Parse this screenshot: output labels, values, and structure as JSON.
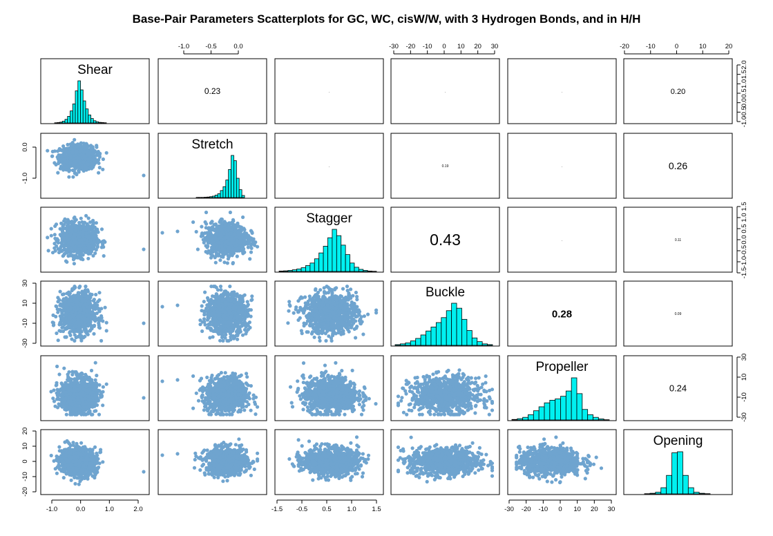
{
  "chart_data": {
    "type": "scatter-matrix",
    "title": "Base-Pair Parameters Scatterplots for GC, WC, cisW/W, with 3 Hydrogen Bonds, and in H/H",
    "variables": [
      "Shear",
      "Stretch",
      "Stagger",
      "Buckle",
      "Propeller",
      "Opening"
    ],
    "ranges": {
      "Shear": [
        -1.4,
        2.5
      ],
      "Stretch": [
        -1.5,
        0.45
      ],
      "Stagger": [
        -1.7,
        1.6
      ],
      "Buckle": [
        -32,
        32
      ],
      "Propeller": [
        -33,
        32
      ],
      "Opening": [
        -21,
        22
      ]
    },
    "correlations": [
      {
        "row": "Shear",
        "col": "Stretch",
        "value": "0.23"
      },
      {
        "row": "Shear",
        "col": "Opening",
        "value": "0.20"
      },
      {
        "row": "Stretch",
        "col": "Opening",
        "value": "0.26"
      },
      {
        "row": "Stagger",
        "col": "Buckle",
        "value": "0.43"
      },
      {
        "row": "Buckle",
        "col": "Propeller",
        "value": "0.28"
      },
      {
        "row": "Propeller",
        "col": "Opening",
        "value": "0.24"
      }
    ],
    "small_marks": [
      {
        "row": "Shear",
        "col": "Stagger",
        "text": "."
      },
      {
        "row": "Shear",
        "col": "Buckle",
        "text": "."
      },
      {
        "row": "Shear",
        "col": "Propeller",
        "text": "."
      },
      {
        "row": "Stretch",
        "col": "Stagger",
        "text": "."
      },
      {
        "row": "Stretch",
        "col": "Buckle",
        "text": "0.19"
      },
      {
        "row": "Stretch",
        "col": "Propeller",
        "text": "."
      },
      {
        "row": "Stagger",
        "col": "Propeller",
        "text": "."
      },
      {
        "row": "Stagger",
        "col": "Opening",
        "text": "0.11"
      },
      {
        "row": "Buckle",
        "col": "Opening",
        "text": "0.09"
      }
    ],
    "histograms": {
      "Shear": [
        1,
        2,
        4,
        9,
        18,
        33,
        60,
        95,
        160,
        210,
        165,
        110,
        70,
        40,
        22,
        11,
        6,
        3,
        2,
        1
      ],
      "Stretch": [
        1,
        1,
        1,
        2,
        3,
        5,
        8,
        14,
        22,
        40,
        62,
        100,
        160,
        240,
        210,
        110,
        45,
        12
      ],
      "Stagger": [
        2,
        3,
        5,
        8,
        12,
        18,
        28,
        40,
        60,
        88,
        120,
        160,
        200,
        170,
        125,
        80,
        40,
        20,
        10,
        5,
        2,
        1
      ],
      "Buckle": [
        3,
        6,
        10,
        18,
        28,
        42,
        58,
        74,
        92,
        112,
        140,
        170,
        150,
        105,
        60,
        30,
        15,
        6,
        3
      ],
      "Propeller": [
        2,
        5,
        10,
        20,
        35,
        50,
        65,
        75,
        80,
        90,
        110,
        160,
        100,
        40,
        20,
        10,
        4,
        1
      ],
      "Opening": [
        1,
        3,
        8,
        30,
        90,
        200,
        205,
        90,
        30,
        8,
        3,
        1
      ]
    },
    "top_axis_ticks": {
      "Stretch": [
        "-1.0",
        "-0.5",
        "0.0"
      ],
      "Buckle": [
        "-30",
        "-20",
        "-10",
        "0",
        "10",
        "20",
        "30"
      ],
      "Opening": [
        "-20",
        "-10",
        "0",
        "10",
        "20"
      ]
    },
    "bottom_axis_ticks": {
      "Shear": [
        "-1.0",
        "0.0",
        "1.0",
        "2.0"
      ],
      "Stagger": [
        "-1.5",
        "-0.5",
        "0.5",
        "1.0",
        "1.5"
      ],
      "Propeller": [
        "-30",
        "-20",
        "-10",
        "0",
        "10",
        "20",
        "30"
      ]
    },
    "left_axis_ticks": {
      "Stretch": [
        "0.0",
        "-1.0"
      ],
      "Buckle": [
        "30",
        "10",
        "-10",
        "-30"
      ],
      "Opening": [
        "20",
        "10",
        "0",
        "-10",
        "-20"
      ]
    },
    "right_axis_ticks": {
      "Shear": [
        "2.0",
        "1.5",
        "1.0",
        "0.5",
        "0.0",
        "-0.5",
        "-1.0"
      ],
      "Stagger": [
        "1.5",
        "1.0",
        "0.5",
        "0.0",
        "-0.5",
        "-1.0",
        "-1.5"
      ],
      "Propeller": [
        "30",
        "10",
        "-10",
        "-30"
      ]
    },
    "point_color": "#6fa4cf",
    "bar_color": "#00f0f0"
  }
}
